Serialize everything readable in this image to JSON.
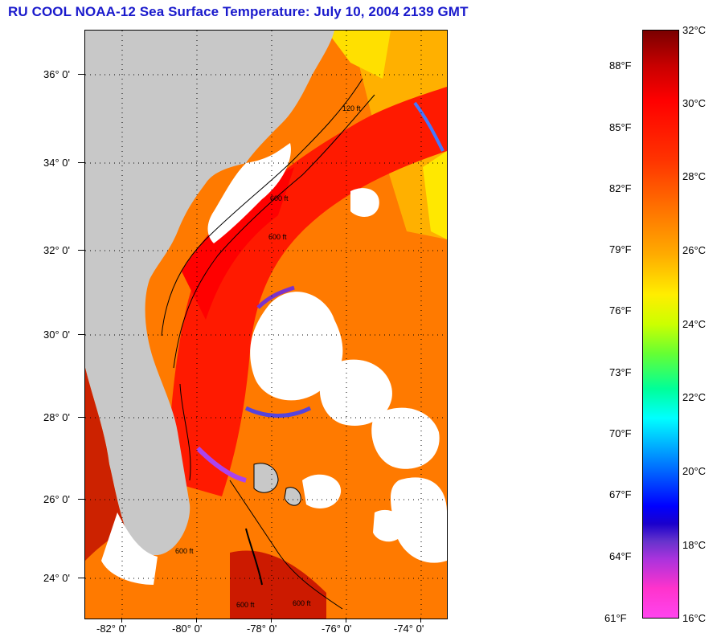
{
  "title": "RU COOL  NOAA-12  Sea Surface Temperature:  July 10, 2004 2139 GMT",
  "map": {
    "lat_labels": [
      "36° 0'",
      "34° 0'",
      "32° 0'",
      "30° 0'",
      "28° 0'",
      "26° 0'",
      "24° 0'"
    ],
    "lon_labels": [
      "-82° 0'",
      "-80° 0'",
      "-78° 0'",
      "-76° 0'",
      "-74° 0'"
    ],
    "contour_labels": [
      "600 ft",
      "600 ft",
      "600 ft",
      "600 ft",
      "600 ft",
      "120 ft"
    ],
    "colors": {
      "land": "#c8c8c8",
      "cloud": "#ffffff",
      "gulf_stream": "#ff1a00",
      "warm_water": "#ff6a00",
      "shelf": "#ff8c00"
    }
  },
  "colorbar": {
    "fahrenheit": [
      "88°F",
      "85°F",
      "82°F",
      "79°F",
      "76°F",
      "73°F",
      "70°F",
      "67°F",
      "64°F",
      "61°F"
    ],
    "celsius": [
      "32°C",
      "30°C",
      "28°C",
      "26°C",
      "24°C",
      "22°C",
      "20°C",
      "18°C",
      "16°C"
    ]
  }
}
